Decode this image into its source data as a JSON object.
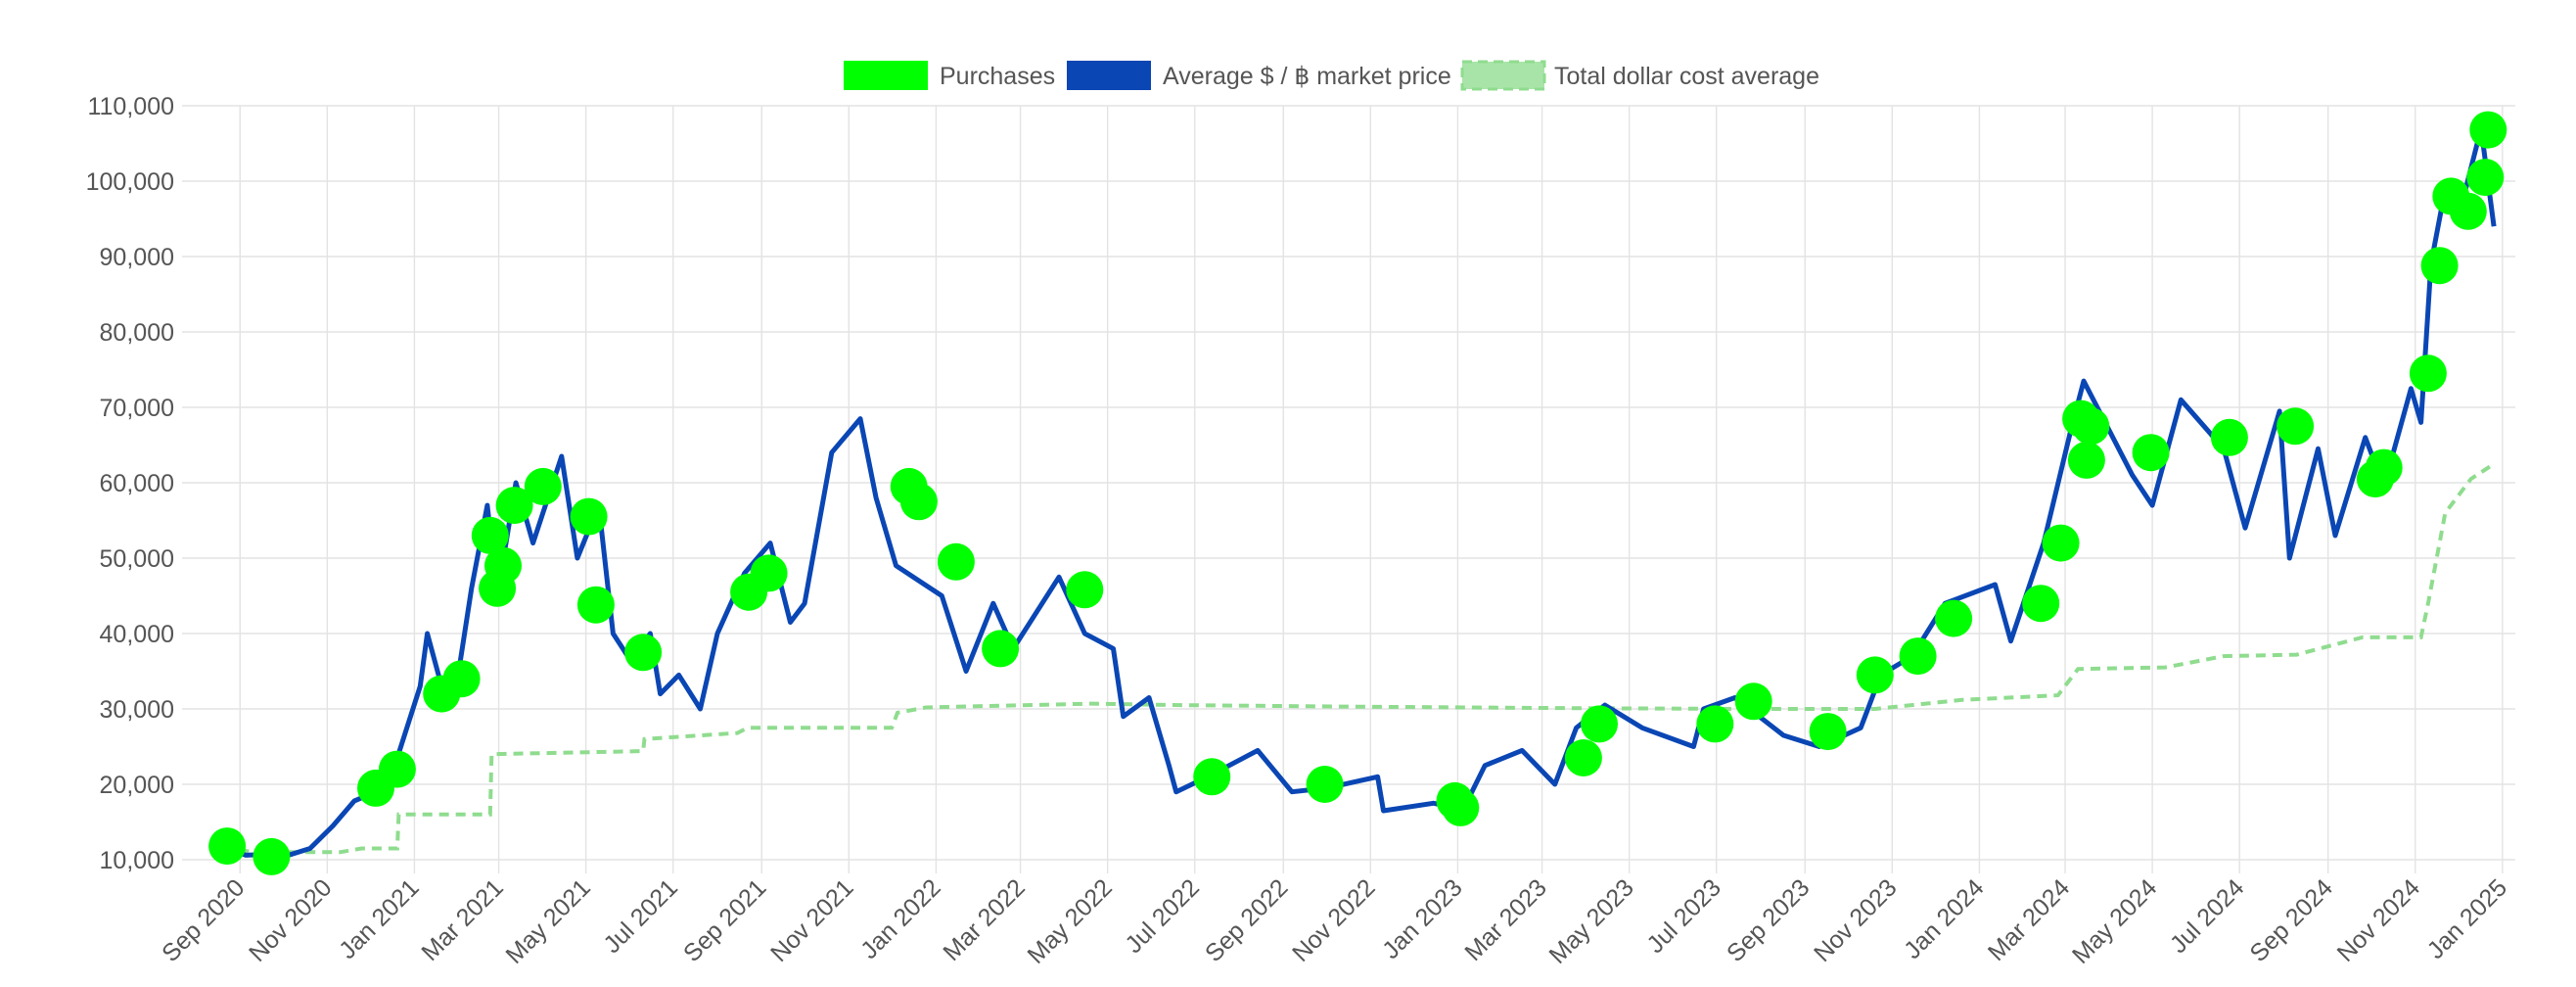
{
  "colors": {
    "purchases": "#00ff00",
    "market_price": "#0a46b4",
    "dca": "#8fdc8f",
    "grid": "#e3e3e3",
    "text": "#555555"
  },
  "chart_data": {
    "type": "line",
    "legend": {
      "placement": "top-center",
      "items": [
        {
          "key": "purchases",
          "label": "Purchases",
          "style": "filled-box"
        },
        {
          "key": "market_price",
          "label": "Average $ / ฿ market price",
          "style": "filled-box"
        },
        {
          "key": "dca",
          "label": "Total dollar cost average",
          "style": "dashed-box"
        }
      ]
    },
    "x_axis": {
      "type": "date",
      "range": [
        "2020-08-01",
        "2025-01-10"
      ],
      "tick_labels": [
        "Sep 2020",
        "Nov 2020",
        "Jan 2021",
        "Mar 2021",
        "May 2021",
        "Jul 2021",
        "Sep 2021",
        "Nov 2021",
        "Jan 2022",
        "Mar 2022",
        "May 2022",
        "Jul 2022",
        "Sep 2022",
        "Nov 2022",
        "Jan 2023",
        "Mar 2023",
        "May 2023",
        "Jul 2023",
        "Sep 2023",
        "Nov 2023",
        "Jan 2024",
        "Mar 2024",
        "May 2024",
        "Jul 2024",
        "Sep 2024",
        "Nov 2024",
        "Jan 2025"
      ],
      "tick_dates": [
        "2020-09-01",
        "2020-11-01",
        "2021-01-01",
        "2021-03-01",
        "2021-05-01",
        "2021-07-01",
        "2021-09-01",
        "2021-11-01",
        "2022-01-01",
        "2022-03-01",
        "2022-05-01",
        "2022-07-01",
        "2022-09-01",
        "2022-11-01",
        "2023-01-01",
        "2023-03-01",
        "2023-05-01",
        "2023-07-01",
        "2023-09-01",
        "2023-11-01",
        "2024-01-01",
        "2024-03-01",
        "2024-05-01",
        "2024-07-01",
        "2024-09-01",
        "2024-11-01",
        "2025-01-01"
      ]
    },
    "y_axis": {
      "range": [
        10000,
        110000
      ],
      "ticks": [
        10000,
        20000,
        30000,
        40000,
        50000,
        60000,
        70000,
        80000,
        90000,
        100000,
        110000
      ],
      "tick_labels": [
        "10,000",
        "20,000",
        "30,000",
        "40,000",
        "50,000",
        "60,000",
        "70,000",
        "80,000",
        "90,000",
        "100,000",
        "110,000"
      ]
    },
    "grid": true,
    "series": [
      {
        "key": "market_price",
        "name": "Average $ / ฿ market price",
        "points": [
          [
            "2020-08-20",
            11700
          ],
          [
            "2020-09-05",
            10600
          ],
          [
            "2020-09-20",
            10700
          ],
          [
            "2020-10-05",
            10600
          ],
          [
            "2020-10-20",
            11500
          ],
          [
            "2020-11-05",
            14500
          ],
          [
            "2020-11-20",
            17800
          ],
          [
            "2020-12-05",
            19000
          ],
          [
            "2020-12-20",
            23500
          ],
          [
            "2021-01-05",
            33000
          ],
          [
            "2021-01-10",
            40000
          ],
          [
            "2021-01-20",
            33000
          ],
          [
            "2021-02-01",
            35000
          ],
          [
            "2021-02-10",
            46000
          ],
          [
            "2021-02-21",
            57000
          ],
          [
            "2021-02-28",
            45000
          ],
          [
            "2021-03-13",
            60000
          ],
          [
            "2021-03-25",
            52000
          ],
          [
            "2021-04-14",
            63500
          ],
          [
            "2021-04-25",
            50000
          ],
          [
            "2021-05-10",
            57000
          ],
          [
            "2021-05-20",
            40000
          ],
          [
            "2021-06-01",
            36500
          ],
          [
            "2021-06-15",
            40000
          ],
          [
            "2021-06-22",
            32000
          ],
          [
            "2021-07-05",
            34500
          ],
          [
            "2021-07-20",
            30000
          ],
          [
            "2021-08-01",
            40000
          ],
          [
            "2021-08-20",
            48000
          ],
          [
            "2021-09-07",
            52000
          ],
          [
            "2021-09-21",
            41500
          ],
          [
            "2021-10-01",
            44000
          ],
          [
            "2021-10-20",
            64000
          ],
          [
            "2021-11-09",
            68500
          ],
          [
            "2021-11-20",
            58000
          ],
          [
            "2021-12-04",
            49000
          ],
          [
            "2021-12-20",
            47000
          ],
          [
            "2022-01-05",
            45000
          ],
          [
            "2022-01-22",
            35000
          ],
          [
            "2022-02-10",
            44000
          ],
          [
            "2022-02-24",
            38000
          ],
          [
            "2022-03-28",
            47500
          ],
          [
            "2022-04-15",
            40000
          ],
          [
            "2022-05-05",
            38000
          ],
          [
            "2022-05-12",
            29000
          ],
          [
            "2022-05-30",
            31500
          ],
          [
            "2022-06-13",
            22500
          ],
          [
            "2022-06-18",
            19000
          ],
          [
            "2022-07-10",
            21000
          ],
          [
            "2022-08-14",
            24500
          ],
          [
            "2022-09-07",
            19000
          ],
          [
            "2022-10-01",
            19500
          ],
          [
            "2022-11-06",
            21000
          ],
          [
            "2022-11-10",
            16500
          ],
          [
            "2022-12-15",
            17500
          ],
          [
            "2023-01-05",
            16700
          ],
          [
            "2023-01-20",
            22500
          ],
          [
            "2023-02-15",
            24500
          ],
          [
            "2023-03-10",
            20000
          ],
          [
            "2023-03-25",
            27500
          ],
          [
            "2023-04-14",
            30500
          ],
          [
            "2023-05-10",
            27500
          ],
          [
            "2023-06-15",
            25000
          ],
          [
            "2023-06-22",
            30000
          ],
          [
            "2023-07-14",
            31500
          ],
          [
            "2023-08-17",
            26500
          ],
          [
            "2023-09-11",
            25000
          ],
          [
            "2023-10-10",
            27500
          ],
          [
            "2023-10-24",
            34500
          ],
          [
            "2023-11-15",
            37000
          ],
          [
            "2023-12-08",
            44000
          ],
          [
            "2024-01-12",
            46500
          ],
          [
            "2024-01-23",
            39000
          ],
          [
            "2024-02-15",
            52000
          ],
          [
            "2024-03-05",
            67000
          ],
          [
            "2024-03-14",
            73500
          ],
          [
            "2024-04-17",
            61000
          ],
          [
            "2024-05-01",
            57000
          ],
          [
            "2024-05-21",
            71000
          ],
          [
            "2024-06-20",
            64500
          ],
          [
            "2024-07-05",
            54000
          ],
          [
            "2024-07-29",
            69500
          ],
          [
            "2024-08-05",
            50000
          ],
          [
            "2024-08-25",
            64500
          ],
          [
            "2024-09-06",
            53000
          ],
          [
            "2024-09-27",
            66000
          ],
          [
            "2024-10-10",
            59500
          ],
          [
            "2024-10-29",
            72500
          ],
          [
            "2024-11-05",
            68000
          ],
          [
            "2024-11-12",
            89000
          ],
          [
            "2024-11-22",
            99000
          ],
          [
            "2024-12-05",
            98000
          ],
          [
            "2024-12-17",
            107000
          ],
          [
            "2024-12-26",
            94000
          ]
        ]
      },
      {
        "key": "dca",
        "name": "Total dollar cost average",
        "points": [
          [
            "2020-08-20",
            11700
          ],
          [
            "2020-09-10",
            11000
          ],
          [
            "2020-11-10",
            11000
          ],
          [
            "2020-11-25",
            11500
          ],
          [
            "2020-12-20",
            11500
          ],
          [
            "2020-12-21",
            16000
          ],
          [
            "2021-02-23",
            16000
          ],
          [
            "2021-02-24",
            24000
          ],
          [
            "2021-06-10",
            24400
          ],
          [
            "2021-06-11",
            26000
          ],
          [
            "2021-08-15",
            26800
          ],
          [
            "2021-08-22",
            27500
          ],
          [
            "2021-12-01",
            27500
          ],
          [
            "2021-12-05",
            29500
          ],
          [
            "2021-12-25",
            30200
          ],
          [
            "2022-04-20",
            30700
          ],
          [
            "2022-06-20",
            30500
          ],
          [
            "2022-10-20",
            30300
          ],
          [
            "2023-03-20",
            30100
          ],
          [
            "2023-07-20",
            30000
          ],
          [
            "2023-10-20",
            30000
          ],
          [
            "2023-12-20",
            31200
          ],
          [
            "2024-02-25",
            31800
          ],
          [
            "2024-03-10",
            35300
          ],
          [
            "2024-05-10",
            35500
          ],
          [
            "2024-06-20",
            37000
          ],
          [
            "2024-08-10",
            37200
          ],
          [
            "2024-09-25",
            39500
          ],
          [
            "2024-11-05",
            39500
          ],
          [
            "2024-11-10",
            44000
          ],
          [
            "2024-11-15",
            49000
          ],
          [
            "2024-11-22",
            56000
          ],
          [
            "2024-12-10",
            60500
          ],
          [
            "2024-12-26",
            62500
          ]
        ]
      }
    ],
    "purchases": {
      "name": "Purchases",
      "points": [
        [
          "2020-08-23",
          11800
        ],
        [
          "2020-09-23",
          10400
        ],
        [
          "2020-12-05",
          19500
        ],
        [
          "2020-12-20",
          22000
        ],
        [
          "2021-01-20",
          32000
        ],
        [
          "2021-02-03",
          34000
        ],
        [
          "2021-02-23",
          53000
        ],
        [
          "2021-02-28",
          46000
        ],
        [
          "2021-03-04",
          49000
        ],
        [
          "2021-03-12",
          57000
        ],
        [
          "2021-04-01",
          59500
        ],
        [
          "2021-05-03",
          55500
        ],
        [
          "2021-05-08",
          43800
        ],
        [
          "2021-06-10",
          37500
        ],
        [
          "2021-08-23",
          45500
        ],
        [
          "2021-09-06",
          48000
        ],
        [
          "2021-12-13",
          59500
        ],
        [
          "2021-12-20",
          57500
        ],
        [
          "2022-01-15",
          49500
        ],
        [
          "2022-02-15",
          38000
        ],
        [
          "2022-04-15",
          45800
        ],
        [
          "2022-07-13",
          21000
        ],
        [
          "2022-09-30",
          20000
        ],
        [
          "2022-12-30",
          17800
        ],
        [
          "2023-01-03",
          16900
        ],
        [
          "2023-03-30",
          23500
        ],
        [
          "2023-04-10",
          28000
        ],
        [
          "2023-06-30",
          28000
        ],
        [
          "2023-07-27",
          31000
        ],
        [
          "2023-09-17",
          27000
        ],
        [
          "2023-10-20",
          34500
        ],
        [
          "2023-11-19",
          37000
        ],
        [
          "2023-12-14",
          42000
        ],
        [
          "2024-02-13",
          44000
        ],
        [
          "2024-02-27",
          52000
        ],
        [
          "2024-03-12",
          68500
        ],
        [
          "2024-03-16",
          63000
        ],
        [
          "2024-03-19",
          67500
        ],
        [
          "2024-04-30",
          64000
        ],
        [
          "2024-06-24",
          66000
        ],
        [
          "2024-08-09",
          67500
        ],
        [
          "2024-10-04",
          60500
        ],
        [
          "2024-10-10",
          62000
        ],
        [
          "2024-11-10",
          74500
        ],
        [
          "2024-11-18",
          88800
        ],
        [
          "2024-11-26",
          98000
        ],
        [
          "2024-12-08",
          96000
        ],
        [
          "2024-12-20",
          100500
        ],
        [
          "2024-12-22",
          106800
        ]
      ]
    }
  }
}
